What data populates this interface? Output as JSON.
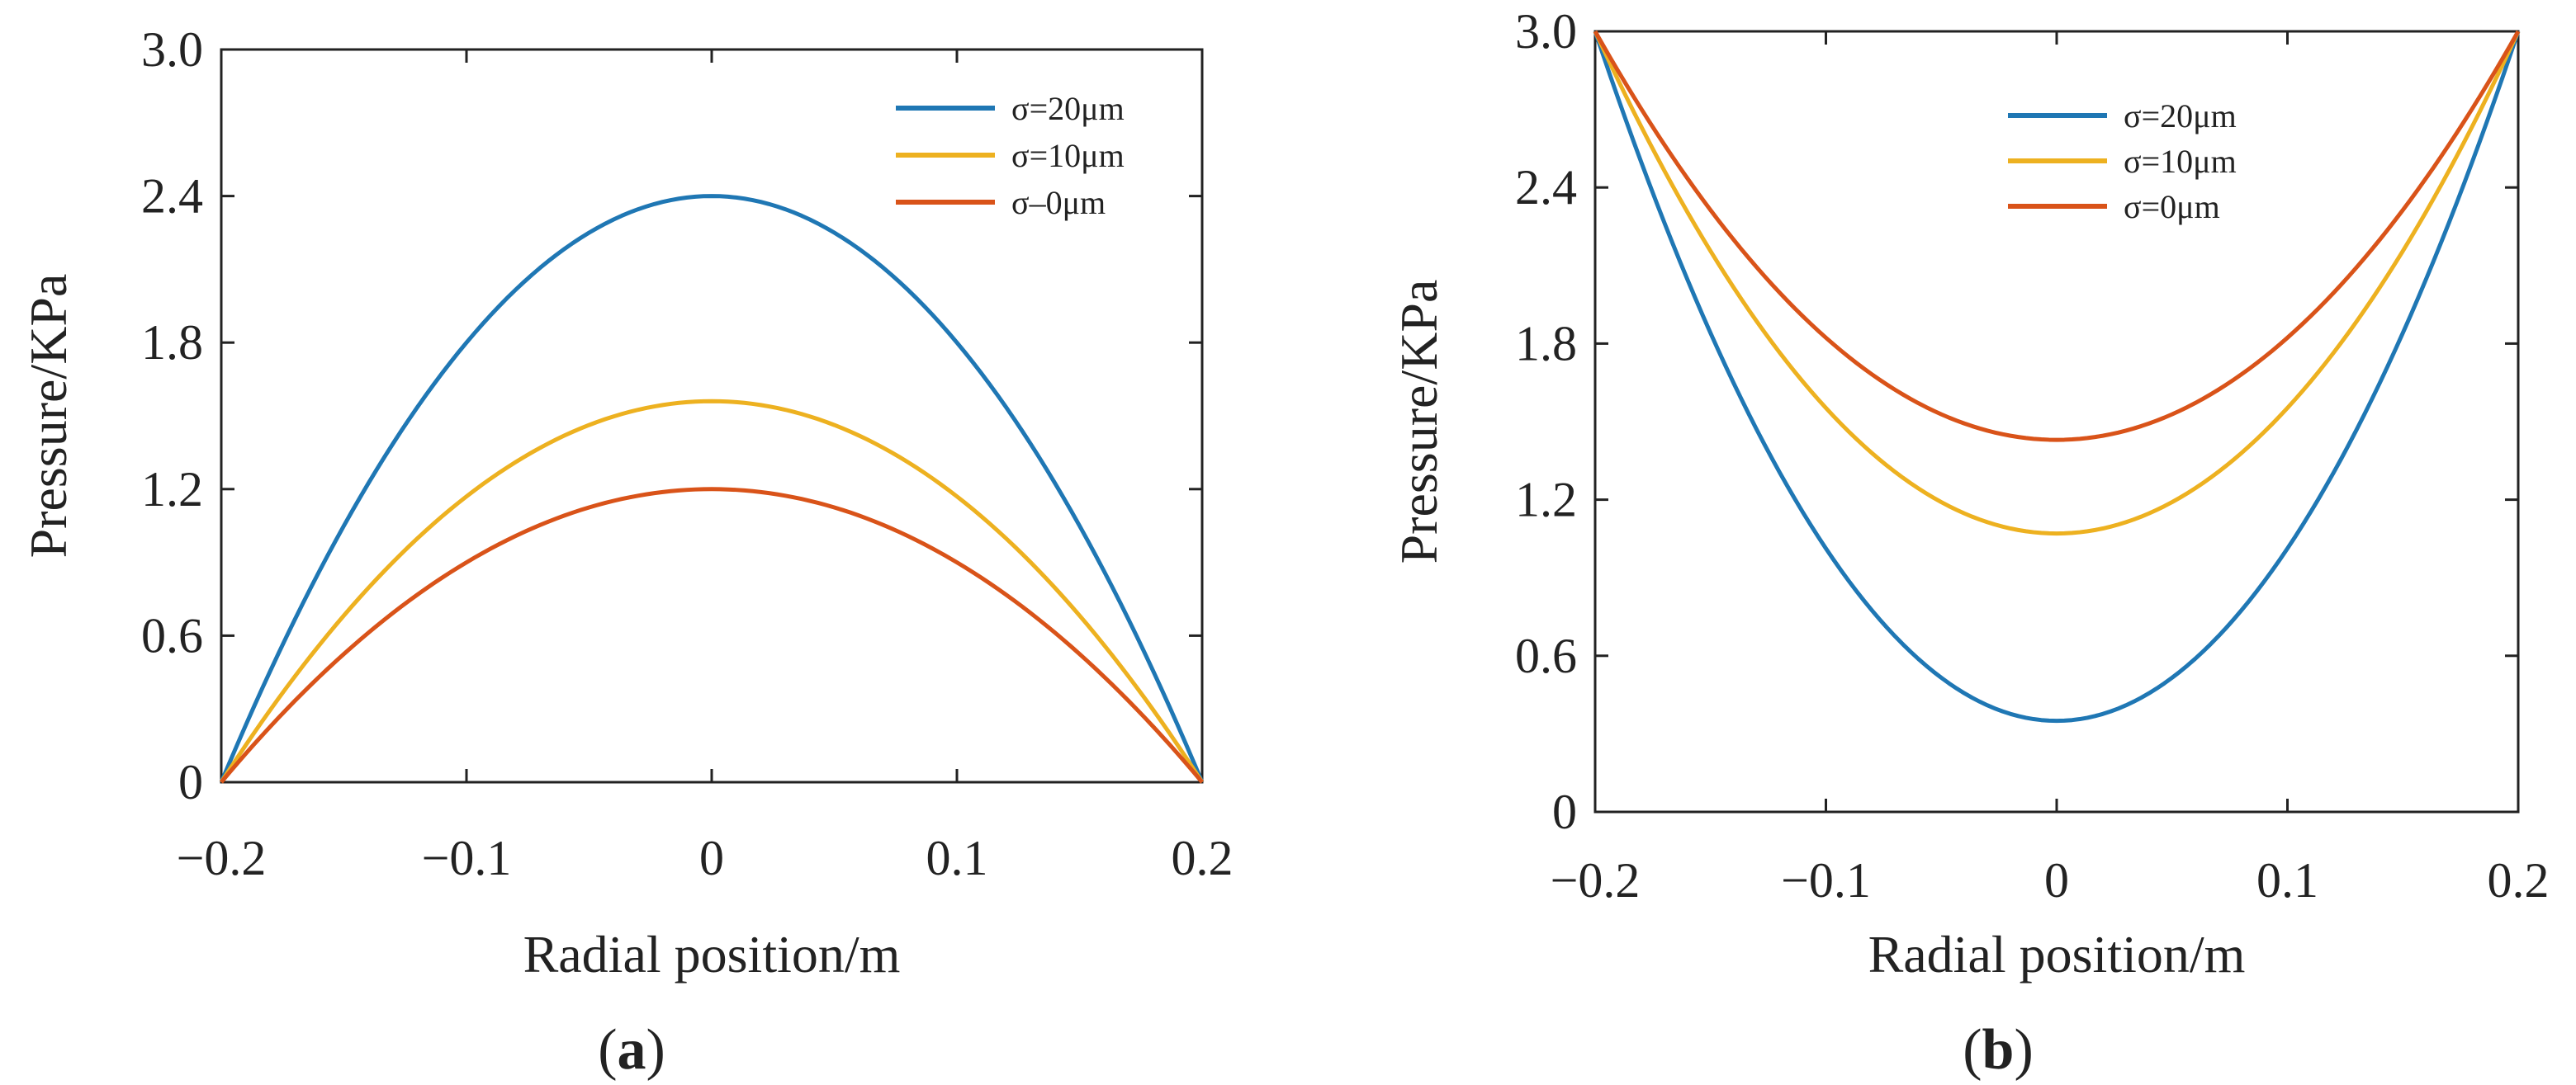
{
  "chart_data": [
    {
      "type": "line",
      "panel": "a",
      "caption_open": "(",
      "caption_letter": "a",
      "caption_close": ")",
      "xlabel": "Radial position/m",
      "ylabel": "Pressure/KPa",
      "xlim": [
        -0.2,
        0.2
      ],
      "ylim": [
        0,
        3.0
      ],
      "xticks": [
        -0.2,
        -0.1,
        0,
        0.1,
        0.2
      ],
      "xtick_labels": [
        "−0.2",
        "−0.1",
        "0",
        "0.1",
        "0.2"
      ],
      "yticks": [
        0,
        0.6,
        1.2,
        1.8,
        2.4,
        3.0
      ],
      "ytick_labels": [
        "0",
        "0.6",
        "1.2",
        "1.8",
        "2.4",
        "3.0"
      ],
      "grid": false,
      "legend_position": "top-right",
      "series": [
        {
          "name": "σ=20μm",
          "color": "#1f77b4",
          "shape": "parabola",
          "edge_value": 0,
          "center_value": 2.4
        },
        {
          "name": "σ=10μm",
          "color": "#edb120",
          "shape": "parabola",
          "edge_value": 0,
          "center_value": 1.56
        },
        {
          "name": "σ–0μm",
          "color": "#d95319",
          "shape": "parabola",
          "edge_value": 0,
          "center_value": 1.2
        }
      ]
    },
    {
      "type": "line",
      "panel": "b",
      "caption_open": "(",
      "caption_letter": "b",
      "caption_close": ")",
      "xlabel": "Radial position/m",
      "ylabel": "Pressure/KPa",
      "xlim": [
        -0.2,
        0.2
      ],
      "ylim": [
        0,
        3.0
      ],
      "xticks": [
        -0.2,
        -0.1,
        0,
        0.1,
        0.2
      ],
      "xtick_labels": [
        "−0.2",
        "−0.1",
        "0",
        "0.1",
        "0.2"
      ],
      "yticks": [
        0,
        0.6,
        1.2,
        1.8,
        2.4,
        3.0
      ],
      "ytick_labels": [
        "0",
        "0.6",
        "1.2",
        "1.8",
        "2.4",
        "3.0"
      ],
      "grid": false,
      "legend_position": "top-center",
      "series": [
        {
          "name": "σ=20μm",
          "color": "#1f77b4",
          "shape": "parabola",
          "edge_value": 3.0,
          "center_value": 0.35
        },
        {
          "name": "σ=10μm",
          "color": "#edb120",
          "shape": "parabola",
          "edge_value": 3.0,
          "center_value": 1.07
        },
        {
          "name": "σ=0μm",
          "color": "#d95319",
          "shape": "parabola",
          "edge_value": 3.0,
          "center_value": 1.43
        }
      ]
    }
  ]
}
